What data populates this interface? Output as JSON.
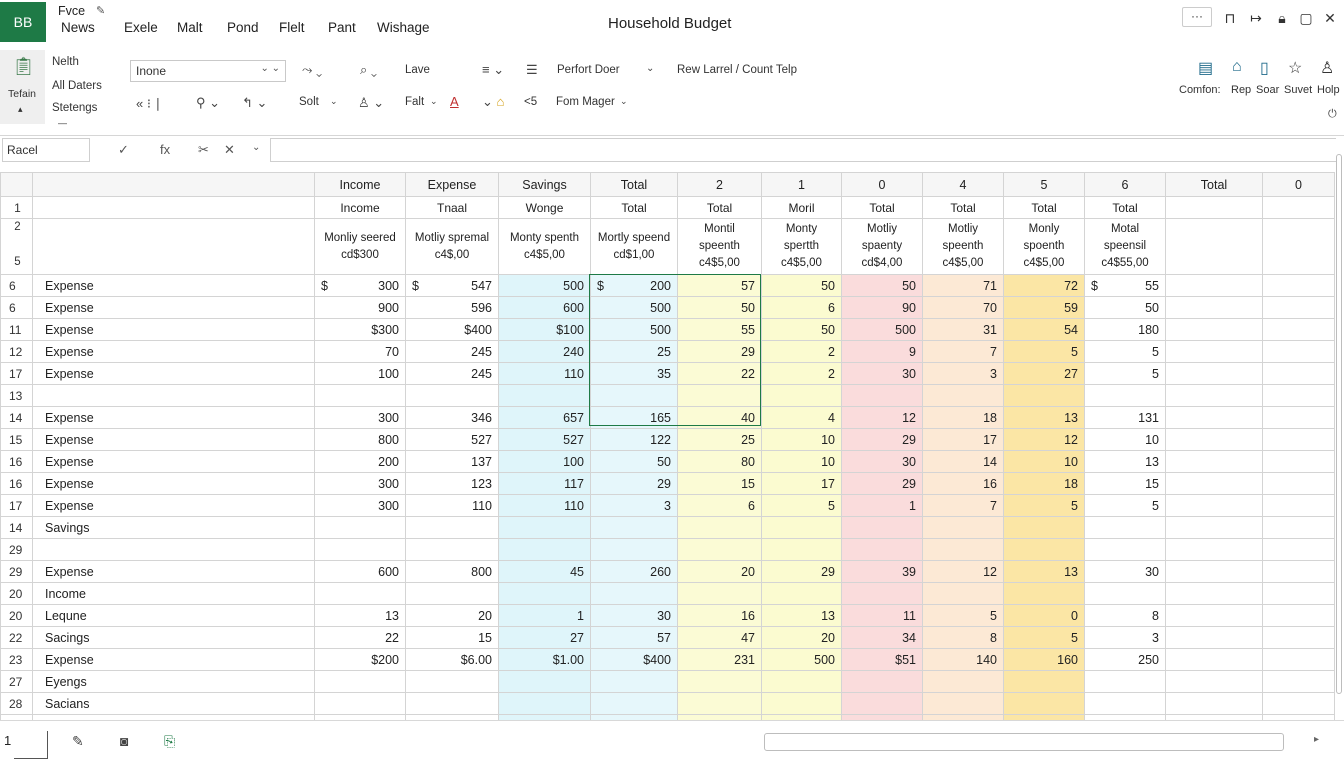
{
  "app": {
    "logo": "BB",
    "title": "Household Budget"
  },
  "menu": {
    "file": "Fvce",
    "items": [
      "News",
      "Exele",
      "Malt",
      "Pond",
      "Flelt",
      "Pant",
      "Wishage"
    ]
  },
  "window_controls": {
    "more": "···",
    "restore": "⊓",
    "back": "↦",
    "user": "🔒︎",
    "max": "▢",
    "close": "✕"
  },
  "ribbon": {
    "left_panel": {
      "label": "Tefain",
      "arrow": "▴"
    },
    "group1": [
      "Nelth",
      "All Daters",
      "Stetengs"
    ],
    "font_name": "Inone",
    "lave": "Lave",
    "solt": "Solt",
    "falt": "Falt",
    "perfort_doer": "Perfort Doer",
    "fom_mager": "Fom Mager",
    "rew_larrel": "Rew Larrel / Count Telp",
    "lt5": "<5",
    "right_labels": [
      "Comfon:",
      "Rep",
      "Soar",
      "Suvet",
      "Holp"
    ]
  },
  "formula_bar": {
    "name_box": "Racel",
    "check": "✓",
    "fx": "fx",
    "cancel": "✕",
    "drop": "⌄"
  },
  "grid": {
    "header": [
      "",
      "Income",
      "Expense",
      "Savings",
      "Total",
      "2",
      "1",
      "0",
      "4",
      "5",
      "6",
      "Total",
      "0"
    ],
    "row1": {
      "num": "1",
      "cells": [
        "",
        "Income",
        "Tnaal",
        "Wonge",
        "Total",
        "Total",
        "Moril",
        "Total",
        "Total",
        "Total",
        "Total",
        "",
        ""
      ]
    },
    "row2": {
      "num1": "2",
      "num2": "5",
      "cells": [
        "",
        "Monliy seered cd$300",
        "Motliy spremal c4$,00",
        "Monty spenth c4$5,00",
        "Mortly speend cd$1,00",
        "Montil speenth c4$5,00",
        "Monty spertth c4$5,00",
        "Motliy spaenty cd$4,00",
        "Motliy speenth c4$5,00",
        "Monly spoenth c4$5,00",
        "Motal speensil c4$55,00",
        "",
        ""
      ]
    },
    "rows": [
      {
        "num": "6",
        "label": "Expense",
        "vals": [
          "300",
          "547",
          "500",
          "200",
          "57",
          "50",
          "50",
          "71",
          "72",
          "55"
        ],
        "cur": true
      },
      {
        "num": "6",
        "label": "Expense",
        "vals": [
          "900",
          "596",
          "600",
          "500",
          "50",
          "6",
          "90",
          "70",
          "59",
          "50"
        ]
      },
      {
        "num": "11",
        "label": "Expense",
        "vals": [
          "$300",
          "$400",
          "$100",
          "500",
          "55",
          "50",
          "500",
          "31",
          "54",
          "180"
        ]
      },
      {
        "num": "12",
        "label": "Expense",
        "vals": [
          "70",
          "245",
          "240",
          "25",
          "29",
          "2",
          "9",
          "7",
          "5",
          "5"
        ]
      },
      {
        "num": "17",
        "label": "Expense",
        "vals": [
          "100",
          "245",
          "110",
          "35",
          "22",
          "2",
          "30",
          "3",
          "27",
          "5"
        ]
      },
      {
        "num": "13",
        "label": "",
        "vals": [
          "",
          "",
          "",
          "",
          "",
          "",
          "",
          "",
          "",
          ""
        ]
      },
      {
        "num": "14",
        "label": "Expense",
        "vals": [
          "300",
          "346",
          "657",
          "165",
          "40",
          "4",
          "12",
          "18",
          "13",
          "131"
        ]
      },
      {
        "num": "15",
        "label": "Expense",
        "vals": [
          "800",
          "527",
          "527",
          "122",
          "25",
          "10",
          "29",
          "17",
          "12",
          "10"
        ]
      },
      {
        "num": "16",
        "label": "Expense",
        "vals": [
          "200",
          "137",
          "100",
          "50",
          "80",
          "10",
          "30",
          "14",
          "10",
          "13"
        ]
      },
      {
        "num": "16",
        "label": "Expense",
        "vals": [
          "300",
          "123",
          "117",
          "29",
          "15",
          "17",
          "29",
          "16",
          "18",
          "15"
        ]
      },
      {
        "num": "17",
        "label": "Expense",
        "vals": [
          "300",
          "110",
          "110",
          "3",
          "6",
          "5",
          "1",
          "7",
          "5",
          "5"
        ]
      },
      {
        "num": "14",
        "label": "Savings",
        "vals": [
          "",
          "",
          "",
          "",
          "",
          "",
          "",
          "",
          "",
          ""
        ]
      },
      {
        "num": "29",
        "label": "",
        "vals": [
          "",
          "",
          "",
          "",
          "",
          "",
          "",
          "",
          "",
          ""
        ]
      },
      {
        "num": "29",
        "label": "Expense",
        "vals": [
          "600",
          "800",
          "45",
          "260",
          "20",
          "29",
          "39",
          "12",
          "13",
          "30"
        ]
      },
      {
        "num": "20",
        "label": "Income",
        "vals": [
          "",
          "",
          "",
          "",
          "",
          "",
          "",
          "",
          "",
          ""
        ]
      },
      {
        "num": "20",
        "label": "Lequne",
        "vals": [
          "13",
          "20",
          "1",
          "30",
          "16",
          "13",
          "11",
          "5",
          "0",
          "8"
        ]
      },
      {
        "num": "22",
        "label": "Sacings",
        "vals": [
          "22",
          "15",
          "27",
          "57",
          "47",
          "20",
          "34",
          "8",
          "5",
          "3"
        ]
      },
      {
        "num": "23",
        "label": "Expense",
        "vals": [
          "$200",
          "$6.00",
          "$1.00",
          "$400",
          "231",
          "500",
          "$51",
          "140",
          "160",
          "250"
        ]
      },
      {
        "num": "27",
        "label": "Eyengs",
        "vals": [
          "",
          "",
          "",
          "",
          "",
          "",
          "",
          "",
          "",
          ""
        ]
      },
      {
        "num": "28",
        "label": "Sacians",
        "vals": [
          "",
          "",
          "",
          "",
          "",
          "",
          "",
          "",
          "",
          ""
        ]
      },
      {
        "num": "28",
        "label": "",
        "vals": [
          "",
          "",
          "",
          "",
          "",
          "",
          "",
          "",
          "",
          ""
        ]
      }
    ]
  },
  "statusbar": {
    "sheet_num": "1"
  },
  "colors": {
    "brand": "#1e7a46",
    "col_total_1": "#dff5fa",
    "col_yellow": "#fbfbd5",
    "col_red": "#fadcdc",
    "col_orange": "#fce9d5",
    "col_gold": "#fbe6a5"
  }
}
